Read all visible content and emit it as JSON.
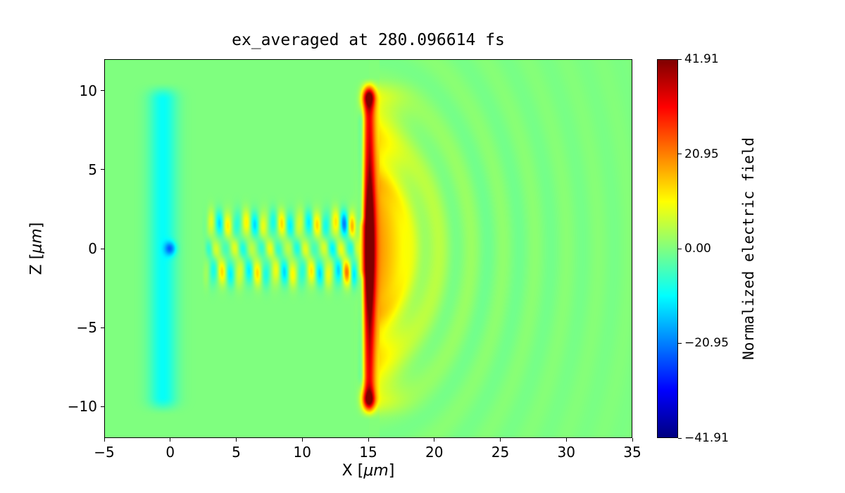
{
  "figure": {
    "title": "ex_averaged at 280.096614 fs",
    "xlabel": {
      "pre": "X [",
      "unit": "μm",
      "post": "]"
    },
    "ylabel": {
      "pre": "Z [",
      "unit": "μm",
      "post": "]"
    },
    "xtick_labels": [
      "−5",
      "0",
      "5",
      "10",
      "15",
      "20",
      "25",
      "30",
      "35"
    ],
    "ztick_labels": [
      "10",
      "5",
      "0",
      "−5",
      "−10"
    ],
    "colorbar_label": "Normalized electric field",
    "colorbar_tick_labels": [
      "41.91",
      "20.95",
      "0.00",
      "−20.95",
      "−41.91"
    ]
  },
  "chart_data": {
    "type": "heatmap",
    "title": "ex_averaged at 280.096614 fs",
    "xlabel": "X [μm]",
    "ylabel": "Z [μm]",
    "xlim": [
      -5,
      35
    ],
    "zlim": [
      -12,
      12
    ],
    "xticks": [
      -5,
      0,
      5,
      10,
      15,
      20,
      25,
      30,
      35
    ],
    "zticks": [
      10,
      5,
      0,
      -5,
      -10
    ],
    "grid": false,
    "colorbar": {
      "label": "Normalized electric field",
      "vmin": -41.91,
      "vmax": 41.91,
      "ticks": [
        41.91,
        20.95,
        0,
        -20.95,
        -41.91
      ],
      "colormap": "jet"
    },
    "features": {
      "background": 0,
      "left_band": {
        "x_center": -0.55,
        "x_sigma": 0.75,
        "amplitude": -10,
        "z_extent": 10.6,
        "z_soft": 1.2
      },
      "origin_dot": {
        "x": 0.0,
        "z": 0.0,
        "sigma": 0.3,
        "amplitude": -16
      },
      "wake": {
        "x_start": 2.3,
        "x_end": 14.6,
        "period": 1.35,
        "amplitude": 13,
        "end_boost": 0.6,
        "rows": [
          {
            "z": 1.55,
            "sigma": 0.6,
            "phase": 0.0,
            "scale": 1.0
          },
          {
            "z": -1.5,
            "sigma": 0.6,
            "phase": 2.2,
            "scale": 1.0
          },
          {
            "z": 0.0,
            "sigma": 0.45,
            "phase": 4.1,
            "scale": 0.7
          }
        ]
      },
      "sheath": {
        "x_core": 15.05,
        "core_sigma": 0.32,
        "amp_core": 40,
        "core_base": 0.55,
        "core_bulge": 0.5,
        "z_bulge_sigma": 2.8,
        "tip_z": 9.7,
        "tip_sigma": 0.55,
        "tip_boost": 0.55,
        "z_extent": 10.3,
        "z_soft": 0.9,
        "amp_halo": 14,
        "halo_sigma_right": 1.6,
        "halo_sigma_left": 0.4,
        "amp_fan": 7,
        "fan_x_offset": 1.5,
        "fan_x_sigma": 2.8,
        "fan_z_sigma": 4.5,
        "front_cyan": {
          "x": 14.5,
          "x_sigma": 0.18,
          "amplitude": -8,
          "z_inner": 1.3,
          "z_outer": 9.5
        }
      },
      "arcs": {
        "amplitude": 3.5,
        "wavelength": 2.4,
        "r_start": 2.2,
        "decay": 11,
        "z_scale": 0.75
      }
    }
  }
}
